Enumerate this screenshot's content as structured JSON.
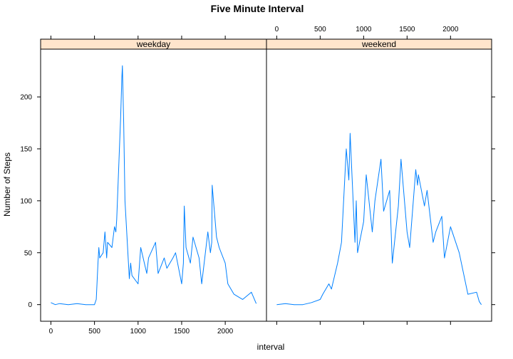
{
  "chart_data": {
    "type": "line",
    "title": "Five Minute Interval",
    "xlabel": "interval",
    "ylabel": "Number of Steps",
    "xlim": [
      -118,
      2473
    ],
    "ylim": [
      -16,
      246
    ],
    "x_ticks": [
      0,
      500,
      1000,
      1500,
      2000
    ],
    "y_ticks": [
      0,
      50,
      100,
      150,
      200
    ],
    "strip_color": "#ffe5cc",
    "line_color": "#0080ff",
    "panels": [
      {
        "name": "weekday",
        "x": [
          0,
          50,
          100,
          200,
          300,
          400,
          500,
          520,
          540,
          550,
          560,
          600,
          620,
          640,
          650,
          700,
          730,
          745,
          755,
          800,
          815,
          820,
          835,
          850,
          900,
          915,
          930,
          1000,
          1030,
          1100,
          1120,
          1200,
          1230,
          1300,
          1330,
          1400,
          1430,
          1500,
          1520,
          1530,
          1550,
          1600,
          1630,
          1700,
          1730,
          1800,
          1830,
          1845,
          1850,
          1900,
          1930,
          2000,
          2030,
          2100,
          2200,
          2300,
          2355
        ],
        "y": [
          2,
          0,
          1,
          0,
          1,
          0,
          0,
          5,
          40,
          55,
          45,
          50,
          70,
          45,
          60,
          55,
          75,
          70,
          82,
          180,
          220,
          230,
          175,
          100,
          25,
          40,
          28,
          20,
          55,
          30,
          45,
          60,
          30,
          45,
          35,
          45,
          50,
          20,
          40,
          95,
          55,
          40,
          65,
          45,
          20,
          70,
          50,
          60,
          115,
          65,
          55,
          40,
          20,
          10,
          5,
          12,
          1
        ]
      },
      {
        "name": "weekend",
        "x": [
          0,
          100,
          200,
          300,
          400,
          500,
          530,
          600,
          630,
          700,
          745,
          800,
          830,
          845,
          900,
          915,
          930,
          1000,
          1030,
          1100,
          1130,
          1200,
          1230,
          1300,
          1330,
          1400,
          1430,
          1500,
          1530,
          1600,
          1620,
          1630,
          1700,
          1730,
          1800,
          1830,
          1900,
          1930,
          2000,
          2100,
          2200,
          2300,
          2330,
          2355
        ],
        "y": [
          0,
          1,
          0,
          0,
          2,
          5,
          10,
          20,
          15,
          40,
          60,
          150,
          120,
          165,
          60,
          100,
          50,
          80,
          125,
          70,
          100,
          140,
          90,
          110,
          40,
          95,
          140,
          70,
          55,
          130,
          115,
          125,
          95,
          110,
          60,
          70,
          85,
          45,
          75,
          50,
          10,
          12,
          3,
          0
        ]
      }
    ]
  }
}
